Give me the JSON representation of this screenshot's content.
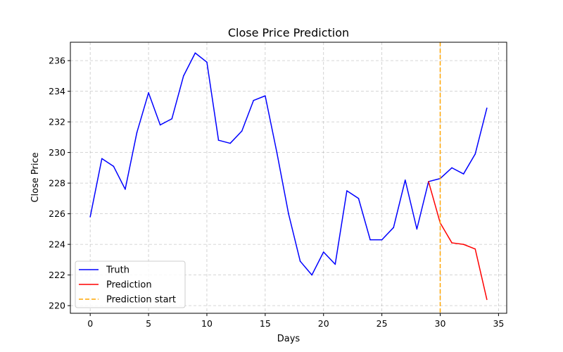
{
  "chart_data": {
    "type": "line",
    "title": "Close Price Prediction",
    "xlabel": "Days",
    "ylabel": "Close Price",
    "xlim": [
      -1.7,
      35.7
    ],
    "ylim": [
      219.5,
      237.2
    ],
    "xticks": [
      0,
      5,
      10,
      15,
      20,
      25,
      30,
      35
    ],
    "yticks": [
      220,
      222,
      224,
      226,
      228,
      230,
      232,
      234,
      236
    ],
    "grid": true,
    "legend_position": "lower-left",
    "series": [
      {
        "name": "Truth",
        "color": "#0000ff",
        "style": "solid",
        "x": [
          0,
          1,
          2,
          3,
          4,
          5,
          6,
          7,
          8,
          9,
          10,
          11,
          12,
          13,
          14,
          15,
          16,
          17,
          18,
          19,
          20,
          21,
          22,
          23,
          24,
          25,
          26,
          27,
          28,
          29,
          30,
          31,
          32,
          33,
          34
        ],
        "values": [
          225.8,
          229.6,
          229.1,
          227.6,
          231.3,
          233.9,
          231.8,
          232.2,
          235.0,
          236.5,
          235.9,
          230.8,
          230.6,
          231.4,
          233.4,
          233.7,
          230.0,
          226.0,
          222.9,
          222.0,
          223.5,
          222.7,
          227.5,
          227.0,
          224.3,
          224.3,
          225.1,
          228.2,
          225.0,
          228.1,
          228.3,
          229.0,
          228.6,
          229.9,
          232.9
        ]
      },
      {
        "name": "Prediction",
        "color": "#ff0000",
        "style": "solid",
        "x": [
          29,
          30,
          31,
          32,
          33,
          34
        ],
        "values": [
          228.1,
          225.4,
          224.1,
          224.0,
          223.7,
          220.4
        ]
      },
      {
        "name": "Prediction start",
        "color": "#ffa500",
        "style": "dashed",
        "type": "vline",
        "x_value": 30
      }
    ]
  }
}
